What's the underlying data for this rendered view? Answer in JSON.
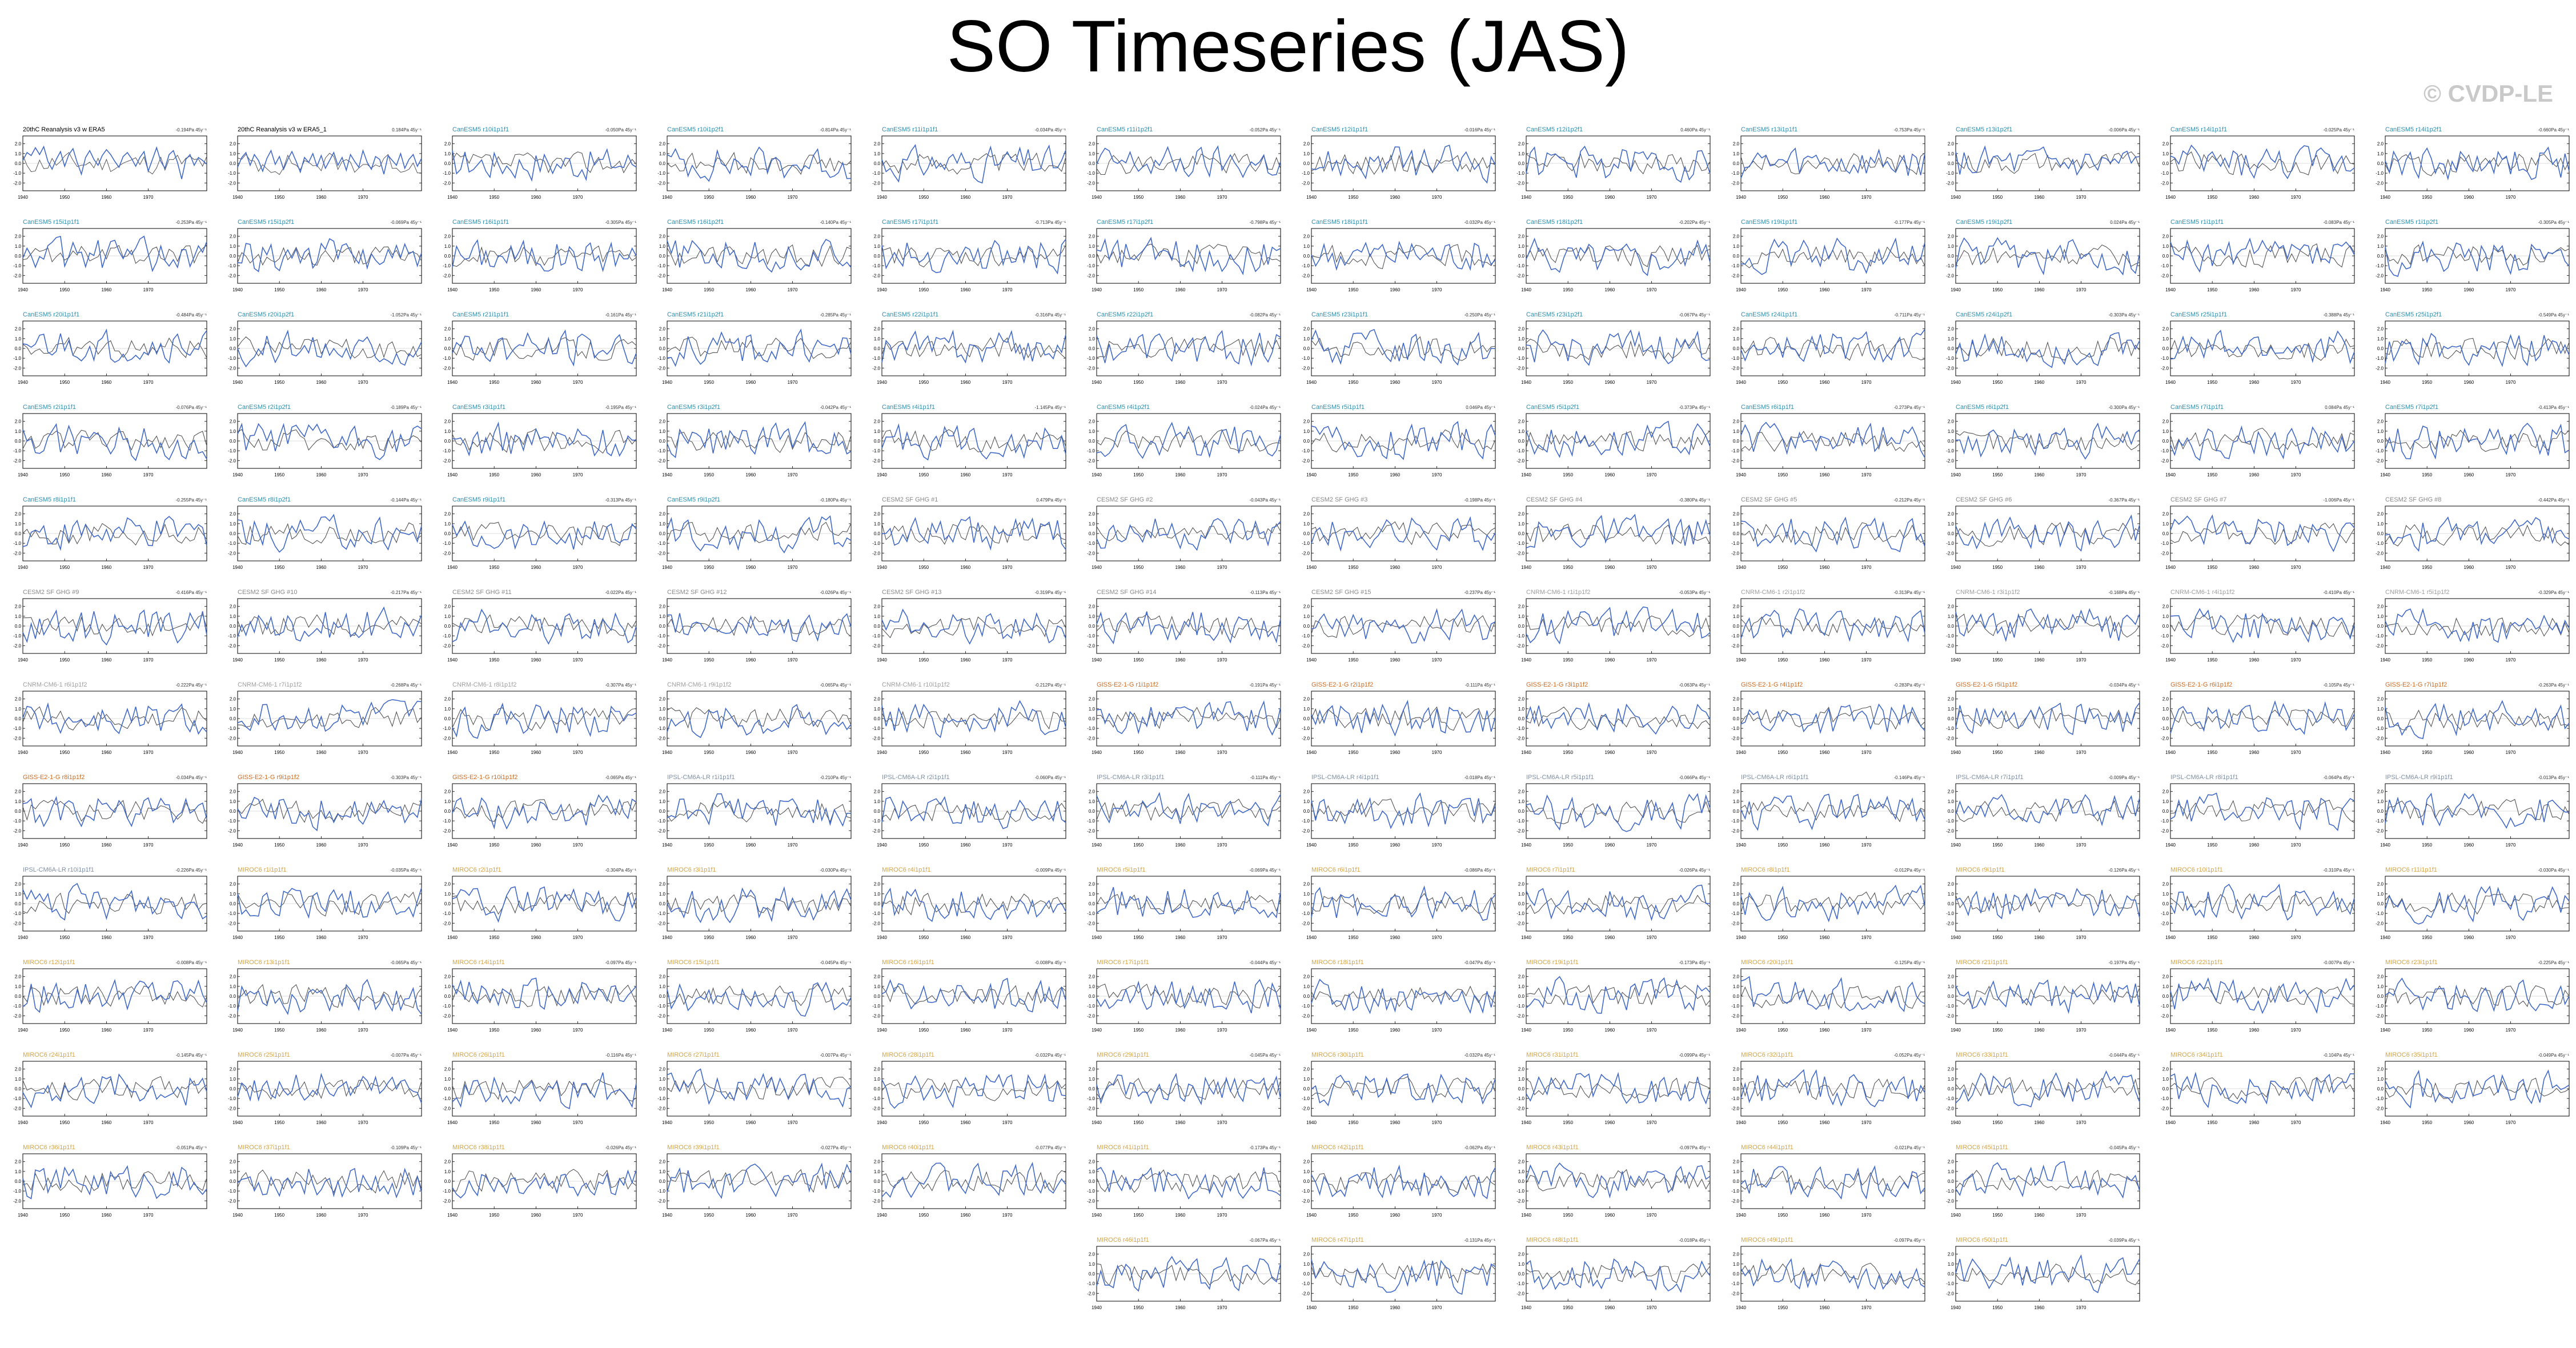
{
  "page": {
    "title": "SO Timeseries (JAS)",
    "watermark": "© CVDP-LE"
  },
  "colors": {
    "observed_line": "#4169c8",
    "ensemble_line": "#555555",
    "label_obs": "#000000",
    "label_cesm1": "#2f8fb0",
    "label_cesm2": "#8a8a8a",
    "label_cnrm": "#a0a0a0",
    "label_giss": "#d2691e",
    "label_ipsl": "#7f8fa6",
    "label_miroc": "#d9a441"
  },
  "chart_data": {
    "type": "line",
    "x_ticks": [
      1940,
      1950,
      1960,
      1970
    ],
    "xlim": [
      1940,
      1984
    ],
    "y_ticks": [
      2.0,
      1.0,
      0.0,
      -1.0,
      -2.0
    ],
    "ylim": [
      -2.8,
      2.8
    ],
    "panels": [
      {
        "label": "20thC Reanalysis v3 w ERA5",
        "trend": "-0.194Pa 45y⁻¹",
        "group": "obs",
        "values": [
          0.3,
          1.1,
          0.8,
          1.6,
          0.9,
          1.7,
          0.2,
          -0.6,
          0.4,
          1.2,
          -0.3,
          0.9,
          1.5,
          0.1,
          -1.1,
          0.6,
          1.3,
          0.4,
          -0.2,
          0.8,
          1.4,
          0.9,
          0.2,
          -0.4,
          0.7,
          1.1,
          0.5,
          -0.3,
          0.6,
          1.2,
          -0.8,
          0.4,
          1.6,
          0.2,
          -0.5,
          0.9,
          1.3,
          0.1,
          -1.6,
          0.4,
          0.9,
          -0.2,
          0.6,
          0.3,
          -0.1
        ]
      },
      {
        "label": "20thC Reanalysis v3 w ERA5_1",
        "trend": "0.184Pa 45y⁻¹",
        "group": "obs",
        "values": [
          -0.4,
          0.6,
          1.1,
          -0.2,
          0.9,
          0.3,
          -0.8,
          0.5,
          1.3,
          -0.1,
          0.7,
          -0.6,
          0.4,
          1.2,
          0.2,
          -0.9,
          0.6,
          0.1,
          1.0,
          -0.3,
          0.8,
          -0.5,
          0.3,
          1.1,
          -0.2,
          0.6,
          -0.7,
          0.9,
          0.2,
          -0.4,
          1.3,
          0.1,
          -0.6,
          0.7,
          0.4,
          -1.1,
          0.8,
          0.3,
          -0.2,
          1.0,
          -0.5,
          0.4,
          0.9,
          -0.3,
          0.5
        ]
      },
      {
        "label": "CanESM5 r10i1p1f1",
        "trend": "-0.050Pa 45y⁻¹",
        "group": "cesm1"
      },
      {
        "label": "CanESM5 r10i1p2f1",
        "trend": "-0.814Pa 45y⁻¹",
        "group": "cesm1"
      },
      {
        "label": "CanESM5 r11i1p1f1",
        "trend": "-0.034Pa 45y⁻¹",
        "group": "cesm1"
      },
      {
        "label": "CanESM5 r11i1p2f1",
        "trend": "-0.052Pa 45y⁻¹",
        "group": "cesm1"
      },
      {
        "label": "CanESM5 r12i1p1f1",
        "trend": "-0.016Pa 45y⁻¹",
        "group": "cesm1"
      },
      {
        "label": "CanESM5 r12i1p2f1",
        "trend": "0.460Pa 45y⁻¹",
        "group": "cesm1"
      },
      {
        "label": "CanESM5 r13i1p1f1",
        "trend": "-0.753Pa 45y⁻¹",
        "group": "cesm1"
      },
      {
        "label": "CanESM5 r13i1p2f1",
        "trend": "-0.006Pa 45y⁻¹",
        "group": "cesm1"
      },
      {
        "label": "CanESM5 r14i1p1f1",
        "trend": "-0.025Pa 45y⁻¹",
        "group": "cesm1"
      },
      {
        "label": "CanESM5 r14i1p2f1",
        "trend": "-0.660Pa 45y⁻¹",
        "group": "cesm1"
      },
      {
        "label": "CanESM5 r15i1p1f1",
        "trend": "-0.253Pa 45y⁻¹",
        "group": "cesm1"
      },
      {
        "label": "CanESM5 r15i1p2f1",
        "trend": "-0.069Pa 45y⁻¹",
        "group": "cesm1"
      },
      {
        "label": "CanESM5 r16i1p1f1",
        "trend": "-0.305Pa 45y⁻¹",
        "group": "cesm1"
      },
      {
        "label": "CanESM5 r16i1p2f1",
        "trend": "-0.140Pa 45y⁻¹",
        "group": "cesm1"
      },
      {
        "label": "CanESM5 r17i1p1f1",
        "trend": "-0.713Pa 45y⁻¹",
        "group": "cesm1"
      },
      {
        "label": "CanESM5 r17i1p2f1",
        "trend": "-0.798Pa 45y⁻¹",
        "group": "cesm1"
      },
      {
        "label": "CanESM5 r18i1p1f1",
        "trend": "-0.032Pa 45y⁻¹",
        "group": "cesm1"
      },
      {
        "label": "CanESM5 r18i1p2f1",
        "trend": "-0.202Pa 45y⁻¹",
        "group": "cesm1"
      },
      {
        "label": "CanESM5 r19i1p1f1",
        "trend": "-0.177Pa 45y⁻¹",
        "group": "cesm1"
      },
      {
        "label": "CanESM5 r19i1p2f1",
        "trend": "0.024Pa 45y⁻¹",
        "group": "cesm1"
      },
      {
        "label": "CanESM5 r1i1p1f1",
        "trend": "-0.083Pa 45y⁻¹",
        "group": "cesm1"
      },
      {
        "label": "CanESM5 r1i1p2f1",
        "trend": "-0.305Pa 45y⁻¹",
        "group": "cesm1"
      },
      {
        "label": "CanESM5 r20i1p1f1",
        "trend": "-0.484Pa 45y⁻¹",
        "group": "cesm1"
      },
      {
        "label": "CanESM5 r20i1p2f1",
        "trend": "-1.052Pa 45y⁻¹",
        "group": "cesm1"
      },
      {
        "label": "CanESM5 r21i1p1f1",
        "trend": "-0.161Pa 45y⁻¹",
        "group": "cesm1"
      },
      {
        "label": "CanESM5 r21i1p2f1",
        "trend": "-0.285Pa 45y⁻¹",
        "group": "cesm1"
      },
      {
        "label": "CanESM5 r22i1p1f1",
        "trend": "-0.316Pa 45y⁻¹",
        "group": "cesm1"
      },
      {
        "label": "CanESM5 r22i1p2f1",
        "trend": "-0.082Pa 45y⁻¹",
        "group": "cesm1"
      },
      {
        "label": "CanESM5 r23i1p1f1",
        "trend": "-0.250Pa 45y⁻¹",
        "group": "cesm1"
      },
      {
        "label": "CanESM5 r23i1p2f1",
        "trend": "-0.067Pa 45y⁻¹",
        "group": "cesm1"
      },
      {
        "label": "CanESM5 r24i1p1f1",
        "trend": "-0.711Pa 45y⁻¹",
        "group": "cesm1"
      },
      {
        "label": "CanESM5 r24i1p2f1",
        "trend": "-0.303Pa 45y⁻¹",
        "group": "cesm1"
      },
      {
        "label": "CanESM5 r25i1p1f1",
        "trend": "-0.388Pa 45y⁻¹",
        "group": "cesm1"
      },
      {
        "label": "CanESM5 r25i1p2f1",
        "trend": "-0.549Pa 45y⁻¹",
        "group": "cesm1"
      },
      {
        "label": "CanESM5 r2i1p1f1",
        "trend": "-0.076Pa 45y⁻¹",
        "group": "cesm1"
      },
      {
        "label": "CanESM5 r2i1p2f1",
        "trend": "-0.189Pa 45y⁻¹",
        "group": "cesm1"
      },
      {
        "label": "CanESM5 r3i1p1f1",
        "trend": "-0.195Pa 45y⁻¹",
        "group": "cesm1"
      },
      {
        "label": "CanESM5 r3i1p2f1",
        "trend": "-0.042Pa 45y⁻¹",
        "group": "cesm1"
      },
      {
        "label": "CanESM5 r4i1p1f1",
        "trend": "-1.145Pa 45y⁻¹",
        "group": "cesm1"
      },
      {
        "label": "CanESM5 r4i1p2f1",
        "trend": "-0.024Pa 45y⁻¹",
        "group": "cesm1"
      },
      {
        "label": "CanESM5 r5i1p1f1",
        "trend": "0.046Pa 45y⁻¹",
        "group": "cesm1"
      },
      {
        "label": "CanESM5 r5i1p2f1",
        "trend": "-0.373Pa 45y⁻¹",
        "group": "cesm1"
      },
      {
        "label": "CanESM5 r6i1p1f1",
        "trend": "-0.273Pa 45y⁻¹",
        "group": "cesm1"
      },
      {
        "label": "CanESM5 r6i1p2f1",
        "trend": "-0.300Pa 45y⁻¹",
        "group": "cesm1"
      },
      {
        "label": "CanESM5 r7i1p1f1",
        "trend": "0.084Pa 45y⁻¹",
        "group": "cesm1"
      },
      {
        "label": "CanESM5 r7i1p2f1",
        "trend": "-0.413Pa 45y⁻¹",
        "group": "cesm1"
      },
      {
        "label": "CanESM5 r8i1p1f1",
        "trend": "-0.255Pa 45y⁻¹",
        "group": "cesm1"
      },
      {
        "label": "CanESM5 r8i1p2f1",
        "trend": "-0.144Pa 45y⁻¹",
        "group": "cesm1"
      },
      {
        "label": "CanESM5 r9i1p1f1",
        "trend": "-0.313Pa 45y⁻¹",
        "group": "cesm1"
      },
      {
        "label": "CanESM5 r9i1p2f1",
        "trend": "-0.180Pa 45y⁻¹",
        "group": "cesm1"
      },
      {
        "label": "CESM2 SF GHG #1",
        "trend": "0.479Pa 45y⁻¹",
        "group": "cesm2"
      },
      {
        "label": "CESM2 SF GHG #2",
        "trend": "-0.043Pa 45y⁻¹",
        "group": "cesm2"
      },
      {
        "label": "CESM2 SF GHG #3",
        "trend": "-0.198Pa 45y⁻¹",
        "group": "cesm2"
      },
      {
        "label": "CESM2 SF GHG #4",
        "trend": "-0.380Pa 45y⁻¹",
        "group": "cesm2"
      },
      {
        "label": "CESM2 SF GHG #5",
        "trend": "-0.212Pa 45y⁻¹",
        "group": "cesm2"
      },
      {
        "label": "CESM2 SF GHG #6",
        "trend": "-0.367Pa 45y⁻¹",
        "group": "cesm2"
      },
      {
        "label": "CESM2 SF GHG #7",
        "trend": "-1.006Pa 45y⁻¹",
        "group": "cesm2"
      },
      {
        "label": "CESM2 SF GHG #8",
        "trend": "-0.442Pa 45y⁻¹",
        "group": "cesm2"
      },
      {
        "label": "CESM2 SF GHG #9",
        "trend": "-0.416Pa 45y⁻¹",
        "group": "cesm2"
      },
      {
        "label": "CESM2 SF GHG #10",
        "trend": "-0.217Pa 45y⁻¹",
        "group": "cesm2"
      },
      {
        "label": "CESM2 SF GHG #11",
        "trend": "-0.022Pa 45y⁻¹",
        "group": "cesm2"
      },
      {
        "label": "CESM2 SF GHG #12",
        "trend": "-0.026Pa 45y⁻¹",
        "group": "cesm2"
      },
      {
        "label": "CESM2 SF GHG #13",
        "trend": "-0.319Pa 45y⁻¹",
        "group": "cesm2"
      },
      {
        "label": "CESM2 SF GHG #14",
        "trend": "-0.113Pa 45y⁻¹",
        "group": "cesm2"
      },
      {
        "label": "CESM2 SF GHG #15",
        "trend": "-0.237Pa 45y⁻¹",
        "group": "cesm2"
      },
      {
        "label": "CNRM-CM6-1 r1i1p1f2",
        "trend": "-0.053Pa 45y⁻¹",
        "group": "cnrm"
      },
      {
        "label": "CNRM-CM6-1 r2i1p1f2",
        "trend": "-0.313Pa 45y⁻¹",
        "group": "cnrm"
      },
      {
        "label": "CNRM-CM6-1 r3i1p1f2",
        "trend": "-0.168Pa 45y⁻¹",
        "group": "cnrm"
      },
      {
        "label": "CNRM-CM6-1 r4i1p1f2",
        "trend": "-0.410Pa 45y⁻¹",
        "group": "cnrm"
      },
      {
        "label": "CNRM-CM6-1 r5i1p1f2",
        "trend": "-0.329Pa 45y⁻¹",
        "group": "cnrm"
      },
      {
        "label": "CNRM-CM6-1 r6i1p1f2",
        "trend": "-0.222Pa 45y⁻¹",
        "group": "cnrm"
      },
      {
        "label": "CNRM-CM6-1 r7i1p1f2",
        "trend": "-0.268Pa 45y⁻¹",
        "group": "cnrm"
      },
      {
        "label": "CNRM-CM6-1 r8i1p1f2",
        "trend": "-0.307Pa 45y⁻¹",
        "group": "cnrm"
      },
      {
        "label": "CNRM-CM6-1 r9i1p1f2",
        "trend": "-0.065Pa 45y⁻¹",
        "group": "cnrm"
      },
      {
        "label": "CNRM-CM6-1 r10i1p1f2",
        "trend": "-0.212Pa 45y⁻¹",
        "group": "cnrm"
      },
      {
        "label": "GISS-E2-1-G r1i1p1f2",
        "trend": "-0.191Pa 45y⁻¹",
        "group": "giss"
      },
      {
        "label": "GISS-E2-1-G r2i1p1f2",
        "trend": "-0.111Pa 45y⁻¹",
        "group": "giss"
      },
      {
        "label": "GISS-E2-1-G r3i1p1f2",
        "trend": "-0.063Pa 45y⁻¹",
        "group": "giss"
      },
      {
        "label": "GISS-E2-1-G r4i1p1f2",
        "trend": "-0.283Pa 45y⁻¹",
        "group": "giss"
      },
      {
        "label": "GISS-E2-1-G r5i1p1f2",
        "trend": "-0.034Pa 45y⁻¹",
        "group": "giss"
      },
      {
        "label": "GISS-E2-1-G r6i1p1f2",
        "trend": "-0.105Pa 45y⁻¹",
        "group": "giss"
      },
      {
        "label": "GISS-E2-1-G r7i1p1f2",
        "trend": "-0.263Pa 45y⁻¹",
        "group": "giss"
      },
      {
        "label": "GISS-E2-1-G r8i1p1f2",
        "trend": "-0.034Pa 45y⁻¹",
        "group": "giss"
      },
      {
        "label": "GISS-E2-1-G r9i1p1f2",
        "trend": "-0.303Pa 45y⁻¹",
        "group": "giss"
      },
      {
        "label": "GISS-E2-1-G r10i1p1f2",
        "trend": "-0.065Pa 45y⁻¹",
        "group": "giss"
      },
      {
        "label": "IPSL-CM6A-LR r1i1p1f1",
        "trend": "-0.210Pa 45y⁻¹",
        "group": "ipsl"
      },
      {
        "label": "IPSL-CM6A-LR r2i1p1f1",
        "trend": "-0.060Pa 45y⁻¹",
        "group": "ipsl"
      },
      {
        "label": "IPSL-CM6A-LR r3i1p1f1",
        "trend": "-0.111Pa 45y⁻¹",
        "group": "ipsl"
      },
      {
        "label": "IPSL-CM6A-LR r4i1p1f1",
        "trend": "-0.018Pa 45y⁻¹",
        "group": "ipsl"
      },
      {
        "label": "IPSL-CM6A-LR r5i1p1f1",
        "trend": "-0.066Pa 45y⁻¹",
        "group": "ipsl"
      },
      {
        "label": "IPSL-CM6A-LR r6i1p1f1",
        "trend": "-0.146Pa 45y⁻¹",
        "group": "ipsl"
      },
      {
        "label": "IPSL-CM6A-LR r7i1p1f1",
        "trend": "-0.009Pa 45y⁻¹",
        "group": "ipsl"
      },
      {
        "label": "IPSL-CM6A-LR r8i1p1f1",
        "trend": "-0.064Pa 45y⁻¹",
        "group": "ipsl"
      },
      {
        "label": "IPSL-CM6A-LR r9i1p1f1",
        "trend": "-0.013Pa 45y⁻¹",
        "group": "ipsl"
      },
      {
        "label": "IPSL-CM6A-LR r10i1p1f1",
        "trend": "-0.226Pa 45y⁻¹",
        "group": "ipsl"
      },
      {
        "label": "MIROC6 r1i1p1f1",
        "trend": "-0.035Pa 45y⁻¹",
        "group": "miroc"
      },
      {
        "label": "MIROC6 r2i1p1f1",
        "trend": "-0.304Pa 45y⁻¹",
        "group": "miroc"
      },
      {
        "label": "MIROC6 r3i1p1f1",
        "trend": "-0.030Pa 45y⁻¹",
        "group": "miroc"
      },
      {
        "label": "MIROC6 r4i1p1f1",
        "trend": "-0.009Pa 45y⁻¹",
        "group": "miroc"
      },
      {
        "label": "MIROC6 r5i1p1f1",
        "trend": "-0.069Pa 45y⁻¹",
        "group": "miroc"
      },
      {
        "label": "MIROC6 r6i1p1f1",
        "trend": "-0.086Pa 45y⁻¹",
        "group": "miroc"
      },
      {
        "label": "MIROC6 r7i1p1f1",
        "trend": "-0.026Pa 45y⁻¹",
        "group": "miroc"
      },
      {
        "label": "MIROC6 r8i1p1f1",
        "trend": "-0.012Pa 45y⁻¹",
        "group": "miroc"
      },
      {
        "label": "MIROC6 r9i1p1f1",
        "trend": "-0.126Pa 45y⁻¹",
        "group": "miroc"
      },
      {
        "label": "MIROC6 r10i1p1f1",
        "trend": "-0.310Pa 45y⁻¹",
        "group": "miroc"
      },
      {
        "label": "MIROC6 r11i1p1f1",
        "trend": "-0.030Pa 45y⁻¹",
        "group": "miroc"
      },
      {
        "label": "MIROC6 r12i1p1f1",
        "trend": "-0.008Pa 45y⁻¹",
        "group": "miroc"
      },
      {
        "label": "MIROC6 r13i1p1f1",
        "trend": "-0.065Pa 45y⁻¹",
        "group": "miroc"
      },
      {
        "label": "MIROC6 r14i1p1f1",
        "trend": "-0.097Pa 45y⁻¹",
        "group": "miroc"
      },
      {
        "label": "MIROC6 r15i1p1f1",
        "trend": "-0.045Pa 45y⁻¹",
        "group": "miroc"
      },
      {
        "label": "MIROC6 r16i1p1f1",
        "trend": "-0.008Pa 45y⁻¹",
        "group": "miroc"
      },
      {
        "label": "MIROC6 r17i1p1f1",
        "trend": "-0.044Pa 45y⁻¹",
        "group": "miroc"
      },
      {
        "label": "MIROC6 r18i1p1f1",
        "trend": "-0.047Pa 45y⁻¹",
        "group": "miroc"
      },
      {
        "label": "MIROC6 r19i1p1f1",
        "trend": "-0.173Pa 45y⁻¹",
        "group": "miroc"
      },
      {
        "label": "MIROC6 r20i1p1f1",
        "trend": "-0.125Pa 45y⁻¹",
        "group": "miroc"
      },
      {
        "label": "MIROC6 r21i1p1f1",
        "trend": "-0.197Pa 45y⁻¹",
        "group": "miroc"
      },
      {
        "label": "MIROC6 r22i1p1f1",
        "trend": "-0.007Pa 45y⁻¹",
        "group": "miroc"
      },
      {
        "label": "MIROC6 r23i1p1f1",
        "trend": "-0.225Pa 45y⁻¹",
        "group": "miroc"
      },
      {
        "label": "MIROC6 r24i1p1f1",
        "trend": "-0.145Pa 45y⁻¹",
        "group": "miroc"
      },
      {
        "label": "MIROC6 r25i1p1f1",
        "trend": "-0.007Pa 45y⁻¹",
        "group": "miroc"
      },
      {
        "label": "MIROC6 r26i1p1f1",
        "trend": "-0.116Pa 45y⁻¹",
        "group": "miroc"
      },
      {
        "label": "MIROC6 r27i1p1f1",
        "trend": "-0.007Pa 45y⁻¹",
        "group": "miroc"
      },
      {
        "label": "MIROC6 r28i1p1f1",
        "trend": "-0.032Pa 45y⁻¹",
        "group": "miroc"
      },
      {
        "label": "MIROC6 r29i1p1f1",
        "trend": "-0.045Pa 45y⁻¹",
        "group": "miroc"
      },
      {
        "label": "MIROC6 r30i1p1f1",
        "trend": "-0.032Pa 45y⁻¹",
        "group": "miroc"
      },
      {
        "label": "MIROC6 r31i1p1f1",
        "trend": "-0.099Pa 45y⁻¹",
        "group": "miroc"
      },
      {
        "label": "MIROC6 r32i1p1f1",
        "trend": "-0.052Pa 45y⁻¹",
        "group": "miroc"
      },
      {
        "label": "MIROC6 r33i1p1f1",
        "trend": "-0.044Pa 45y⁻¹",
        "group": "miroc"
      },
      {
        "label": "MIROC6 r34i1p1f1",
        "trend": "-0.104Pa 45y⁻¹",
        "group": "miroc"
      },
      {
        "label": "MIROC6 r35i1p1f1",
        "trend": "-0.049Pa 45y⁻¹",
        "group": "miroc"
      },
      {
        "label": "MIROC6 r36i1p1f1",
        "trend": "-0.051Pa 45y⁻¹",
        "group": "miroc"
      },
      {
        "label": "MIROC6 r37i1p1f1",
        "trend": "-0.109Pa 45y⁻¹",
        "group": "miroc"
      },
      {
        "label": "MIROC6 r38i1p1f1",
        "trend": "-0.026Pa 45y⁻¹",
        "group": "miroc"
      },
      {
        "label": "MIROC6 r39i1p1f1",
        "trend": "-0.027Pa 45y⁻¹",
        "group": "miroc"
      },
      {
        "label": "MIROC6 r40i1p1f1",
        "trend": "-0.077Pa 45y⁻¹",
        "group": "miroc"
      },
      {
        "label": "MIROC6 r41i1p1f1",
        "trend": "-0.173Pa 45y⁻¹",
        "group": "miroc"
      },
      {
        "label": "MIROC6 r42i1p1f1",
        "trend": "-0.062Pa 45y⁻¹",
        "group": "miroc"
      },
      {
        "label": "MIROC6 r43i1p1f1",
        "trend": "-0.097Pa 45y⁻¹",
        "group": "miroc"
      },
      {
        "label": "MIROC6 r44i1p1f1",
        "trend": "-0.021Pa 45y⁻¹",
        "group": "miroc"
      },
      {
        "label": "MIROC6 r45i1p1f1",
        "trend": "-0.045Pa 45y⁻¹",
        "group": "miroc"
      },
      {
        "label": "MIROC6 r46i1p1f1",
        "trend": "-0.067Pa 45y⁻¹",
        "group": "miroc"
      },
      {
        "label": "MIROC6 r47i1p1f1",
        "trend": "-0.131Pa 45y⁻¹",
        "group": "miroc"
      },
      {
        "label": "MIROC6 r48i1p1f1",
        "trend": "-0.018Pa 45y⁻¹",
        "group": "miroc"
      },
      {
        "label": "MIROC6 r49i1p1f1",
        "trend": "-0.097Pa 45y⁻¹",
        "group": "miroc"
      },
      {
        "label": "MIROC6 r50i1p1f1",
        "trend": "-0.039Pa 45y⁻¹",
        "group": "miroc"
      }
    ]
  }
}
